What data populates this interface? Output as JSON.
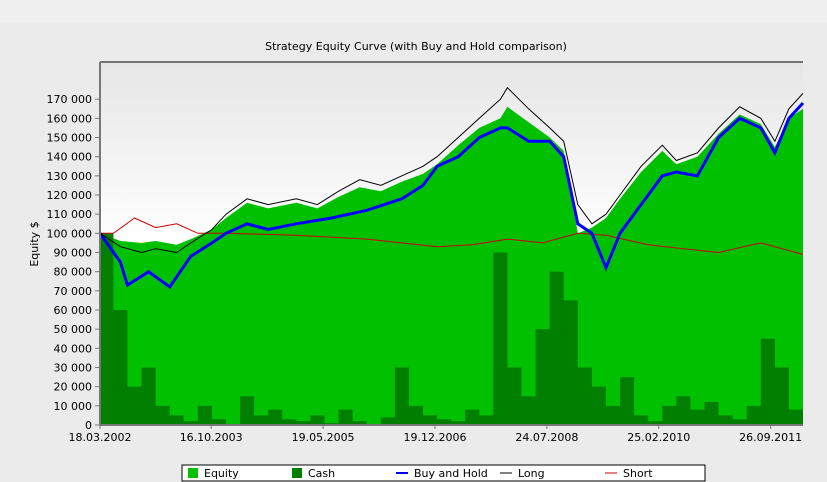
{
  "chart_data": {
    "type": "area",
    "title": "Strategy Equity Curve (with Buy and Hold comparison)",
    "ylabel": "Equity $",
    "xlabel": "",
    "ylim": [
      0,
      180000
    ],
    "xlim": [
      2002.21,
      2012.2
    ],
    "yticks": [
      0,
      10000,
      20000,
      30000,
      40000,
      50000,
      60000,
      70000,
      80000,
      90000,
      100000,
      110000,
      120000,
      130000,
      140000,
      150000,
      160000,
      170000
    ],
    "xtick_labels": [
      {
        "label": "18.03.2002",
        "x": 2002.21
      },
      {
        "label": "16.10.2003",
        "x": 2003.79
      },
      {
        "label": "19.05.2005",
        "x": 2005.38
      },
      {
        "label": "19.12.2006",
        "x": 2006.97
      },
      {
        "label": "24.07.2008",
        "x": 2008.56
      },
      {
        "label": "25.02.2010",
        "x": 2010.15
      },
      {
        "label": "26.09.2011",
        "x": 2011.74
      }
    ],
    "legend": {
      "placement": "bottom",
      "entries": [
        "Equity",
        "Cash",
        "Buy and Hold",
        "Long",
        "Short"
      ]
    },
    "colors": {
      "Equity": "#00c000",
      "Cash": "#007f00",
      "Buy and Hold": "#0000ff",
      "Long": "#000000",
      "Short": "#cc0000"
    },
    "series": [
      {
        "name": "Long",
        "x": [
          2002.21,
          2002.5,
          2002.8,
          2003.0,
          2003.3,
          2003.5,
          2003.8,
          2004.0,
          2004.3,
          2004.6,
          2005.0,
          2005.3,
          2005.6,
          2005.9,
          2006.2,
          2006.5,
          2006.8,
          2007.0,
          2007.3,
          2007.6,
          2007.9,
          2008.0,
          2008.3,
          2008.6,
          2008.8,
          2009.0,
          2009.2,
          2009.4,
          2009.6,
          2009.9,
          2010.2,
          2010.4,
          2010.7,
          2011.0,
          2011.3,
          2011.6,
          2011.8,
          2012.0,
          2012.2
        ],
        "values": [
          100000,
          93000,
          90000,
          92000,
          90000,
          95000,
          102000,
          110000,
          118000,
          115000,
          118000,
          115000,
          122000,
          128000,
          125000,
          130000,
          135000,
          140000,
          150000,
          160000,
          170000,
          176000,
          165000,
          155000,
          148000,
          115000,
          105000,
          110000,
          120000,
          135000,
          146000,
          138000,
          142000,
          155000,
          166000,
          160000,
          148000,
          165000,
          173000
        ]
      },
      {
        "name": "Equity",
        "x": [
          2002.21,
          2002.5,
          2002.8,
          2003.0,
          2003.3,
          2003.5,
          2003.8,
          2004.0,
          2004.3,
          2004.6,
          2005.0,
          2005.3,
          2005.6,
          2005.9,
          2006.2,
          2006.5,
          2006.8,
          2007.0,
          2007.3,
          2007.6,
          2007.9,
          2008.0,
          2008.3,
          2008.6,
          2008.8,
          2009.0,
          2009.2,
          2009.4,
          2009.6,
          2009.9,
          2010.2,
          2010.4,
          2010.7,
          2011.0,
          2011.3,
          2011.6,
          2011.8,
          2012.0,
          2012.2
        ],
        "values": [
          100000,
          96000,
          95000,
          96000,
          94000,
          97000,
          102000,
          108000,
          116000,
          113000,
          116000,
          113000,
          119000,
          124000,
          122000,
          127000,
          131000,
          136000,
          146000,
          155000,
          160000,
          166000,
          158000,
          150000,
          143000,
          100000,
          103000,
          108000,
          118000,
          132000,
          143000,
          136000,
          140000,
          152000,
          162000,
          157000,
          145000,
          160000,
          165000
        ]
      },
      {
        "name": "Buy and Hold",
        "x": [
          2002.21,
          2002.5,
          2002.6,
          2002.9,
          2003.2,
          2003.5,
          2003.8,
          2004.0,
          2004.3,
          2004.6,
          2005.0,
          2005.5,
          2006.0,
          2006.5,
          2006.8,
          2007.0,
          2007.3,
          2007.6,
          2007.9,
          2008.0,
          2008.3,
          2008.6,
          2008.8,
          2009.0,
          2009.2,
          2009.4,
          2009.6,
          2009.9,
          2010.2,
          2010.4,
          2010.7,
          2011.0,
          2011.3,
          2011.6,
          2011.8,
          2012.0,
          2012.2
        ],
        "values": [
          100000,
          85000,
          73000,
          80000,
          72000,
          88000,
          95000,
          100000,
          105000,
          102000,
          105000,
          108000,
          112000,
          118000,
          125000,
          135000,
          140000,
          150000,
          155000,
          155000,
          148000,
          148000,
          140000,
          105000,
          100000,
          82000,
          100000,
          115000,
          130000,
          132000,
          130000,
          150000,
          160000,
          155000,
          142000,
          160000,
          168000
        ]
      },
      {
        "name": "Short",
        "x": [
          2002.21,
          2002.4,
          2002.7,
          2003.0,
          2003.3,
          2003.6,
          2004.0,
          2005.0,
          2006.0,
          2007.0,
          2007.5,
          2008.0,
          2008.5,
          2009.0,
          2009.4,
          2010.0,
          2010.5,
          2011.0,
          2011.6,
          2012.2
        ],
        "values": [
          100000,
          100000,
          108000,
          103000,
          105000,
          100000,
          100000,
          99000,
          97000,
          93000,
          94000,
          97000,
          95000,
          100000,
          99000,
          94000,
          92000,
          90000,
          95000,
          89000
        ]
      },
      {
        "name": "Cash",
        "x": [
          2002.21,
          2002.4,
          2002.6,
          2002.8,
          2003.0,
          2003.2,
          2003.4,
          2003.6,
          2003.8,
          2004.0,
          2004.2,
          2004.4,
          2004.6,
          2004.8,
          2005.0,
          2005.2,
          2005.4,
          2005.6,
          2005.8,
          2006.0,
          2006.2,
          2006.4,
          2006.6,
          2006.8,
          2007.0,
          2007.2,
          2007.4,
          2007.6,
          2007.8,
          2008.0,
          2008.2,
          2008.4,
          2008.6,
          2008.8,
          2009.0,
          2009.2,
          2009.4,
          2009.6,
          2009.8,
          2010.0,
          2010.2,
          2010.4,
          2010.6,
          2010.8,
          2011.0,
          2011.2,
          2011.4,
          2011.6,
          2011.8,
          2012.0,
          2012.2
        ],
        "values": [
          100000,
          60000,
          20000,
          30000,
          10000,
          5000,
          2000,
          10000,
          3000,
          0,
          15000,
          5000,
          8000,
          3000,
          2000,
          5000,
          1000,
          8000,
          2000,
          0,
          4000,
          30000,
          10000,
          5000,
          3000,
          2000,
          8000,
          5000,
          90000,
          30000,
          15000,
          50000,
          80000,
          65000,
          30000,
          20000,
          10000,
          25000,
          5000,
          2000,
          10000,
          15000,
          8000,
          12000,
          5000,
          3000,
          10000,
          45000,
          30000,
          8000,
          5000
        ]
      }
    ]
  }
}
